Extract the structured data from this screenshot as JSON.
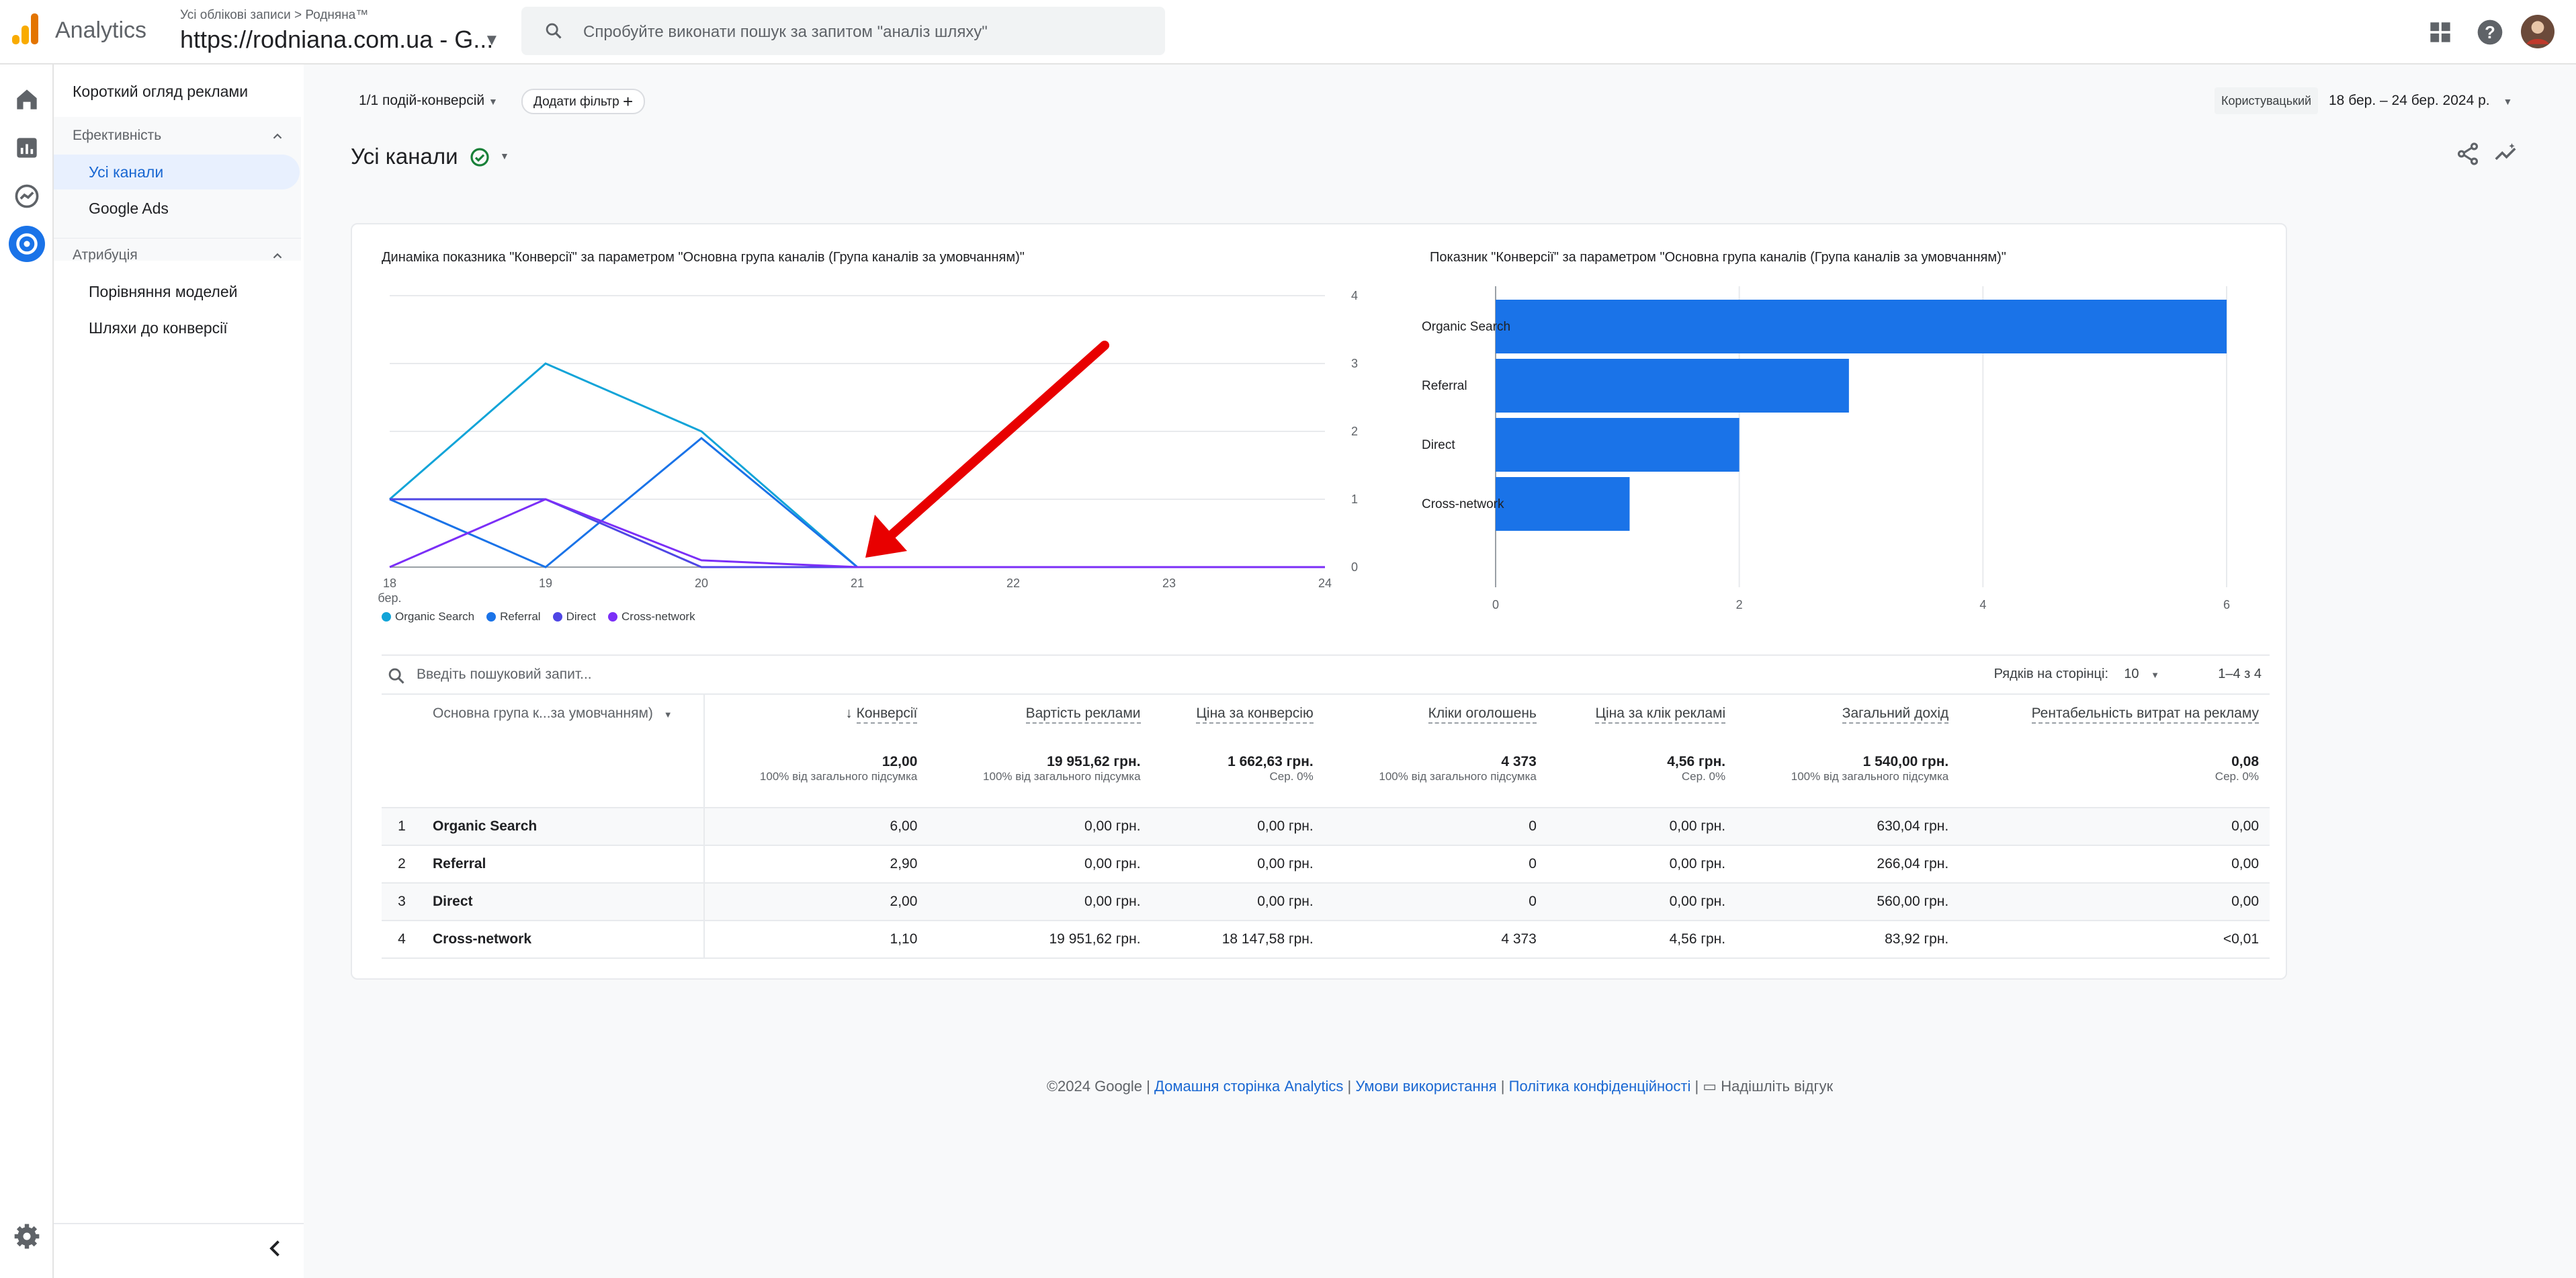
{
  "app": {
    "brand": "Analytics"
  },
  "account": {
    "crumb": "Усі облікові записи > Родняна™",
    "name": "https://rodniana.com.ua - G..."
  },
  "search": {
    "placeholder": "Спробуйте виконати пошук за запитом \"аналіз шляху\""
  },
  "nav": {
    "overview": "Короткий огляд реклами",
    "perf_section": "Ефективність",
    "perf_items": [
      "Усі канали",
      "Google Ads"
    ],
    "attr_section": "Атрибуція",
    "attr_items": [
      "Порівняння моделей",
      "Шляхи до конверсії"
    ]
  },
  "toolbar": {
    "conv_filter": "1/1 подій-конверсій",
    "add_filter": "Додати фільтр",
    "date_mode": "Користувацький",
    "date_range": "18 бер. – 24 бер. 2024 р."
  },
  "page": {
    "title": "Усі канали"
  },
  "colors": {
    "accent": "#1a73e8",
    "organic": "#12a4d8",
    "referral": "#1a73e8",
    "direct": "#4f46e5",
    "cross": "#7b2ff7",
    "arrow": "#e80000"
  },
  "chart_data": [
    {
      "type": "line",
      "title": "Динаміка показника \"Конверсії\" за параметром \"Основна група каналів (Група каналів за умовчанням)\"",
      "x": [
        "18 бер.",
        "19",
        "20",
        "21",
        "22",
        "23",
        "24"
      ],
      "ylim": [
        0,
        4
      ],
      "yticks": [
        0,
        1,
        2,
        3,
        4
      ],
      "legend_position": "bottom-left",
      "series": [
        {
          "name": "Organic Search",
          "values": [
            1,
            3,
            2,
            0,
            0,
            0,
            0
          ]
        },
        {
          "name": "Referral",
          "values": [
            1,
            0,
            1.9,
            0,
            0,
            0,
            0
          ]
        },
        {
          "name": "Direct",
          "values": [
            1,
            1,
            0,
            0,
            0,
            0,
            0
          ]
        },
        {
          "name": "Cross-network",
          "values": [
            0,
            1,
            0.1,
            0,
            0,
            0,
            0
          ]
        }
      ]
    },
    {
      "type": "bar",
      "orientation": "horizontal",
      "title": "Показник \"Конверсії\" за параметром \"Основна група каналів (Група каналів за умовчанням)\"",
      "categories": [
        "Organic Search",
        "Referral",
        "Direct",
        "Cross-network"
      ],
      "values": [
        6,
        2.9,
        2,
        1.1
      ],
      "xlim": [
        0,
        6
      ],
      "xticks": [
        0,
        2,
        4,
        6
      ]
    }
  ],
  "table": {
    "search_placeholder": "Введіть пошуковий запит...",
    "rows_per_page_label": "Рядків на сторінці:",
    "rows_per_page": "10",
    "range": "1–4 з 4",
    "dimension_header": "Основна група к...за умовчанням)",
    "headers": [
      "Конверсії",
      "Вартість реклами",
      "Ціна за конверсію",
      "Кліки оголошень",
      "Ціна за клік рекламі",
      "Загальний дохід",
      "Рентабельність витрат на рекламу"
    ],
    "totals": [
      "12,00",
      "19 951,62 грн.",
      "1 662,63 грн.",
      "4 373",
      "4,56 грн.",
      "1 540,00 грн.",
      "0,08"
    ],
    "totals_sub": [
      "100% від загального підсумка",
      "100% від загального підсумка",
      "Сер. 0%",
      "100% від загального підсумка",
      "Сер. 0%",
      "100% від загального підсумка",
      "Сер. 0%"
    ],
    "rows": [
      {
        "idx": "1",
        "name": "Organic Search",
        "cells": [
          "6,00",
          "0,00 грн.",
          "0,00 грн.",
          "0",
          "0,00 грн.",
          "630,04 грн.",
          "0,00"
        ]
      },
      {
        "idx": "2",
        "name": "Referral",
        "cells": [
          "2,90",
          "0,00 грн.",
          "0,00 грн.",
          "0",
          "0,00 грн.",
          "266,04 грн.",
          "0,00"
        ]
      },
      {
        "idx": "3",
        "name": "Direct",
        "cells": [
          "2,00",
          "0,00 грн.",
          "0,00 грн.",
          "0",
          "0,00 грн.",
          "560,00 грн.",
          "0,00"
        ]
      },
      {
        "idx": "4",
        "name": "Cross-network",
        "cells": [
          "1,10",
          "19 951,62 грн.",
          "18 147,58 грн.",
          "4 373",
          "4,56 грн.",
          "83,92 грн.",
          "<0,01"
        ]
      }
    ]
  },
  "footer": {
    "copyright": "©2024 Google |",
    "home": "Домашня сторінка Analytics",
    "terms": "Умови використання",
    "privacy": "Політика конфіденційності",
    "feedback": "Надішліть відгук"
  }
}
